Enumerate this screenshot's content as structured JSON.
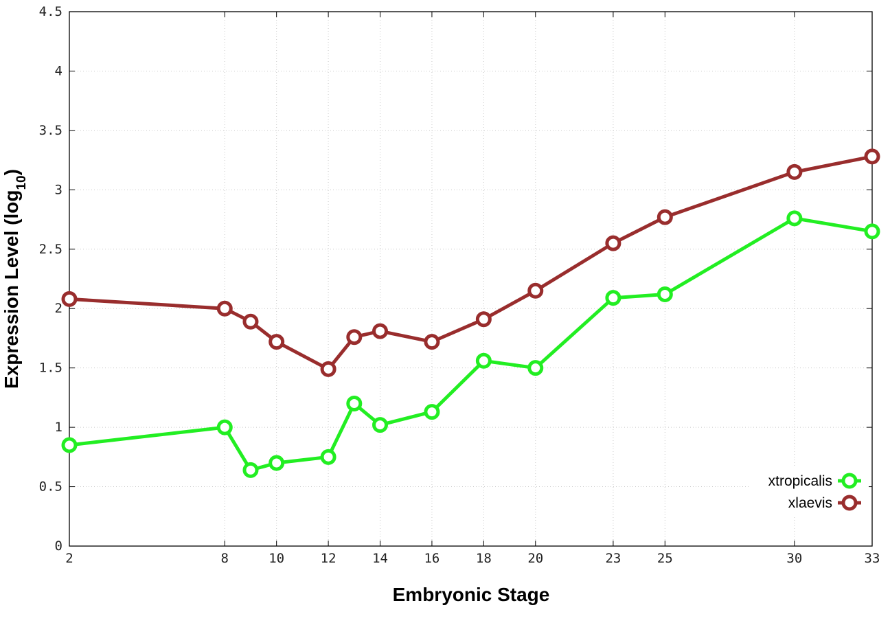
{
  "chart_data": {
    "type": "line",
    "xlabel": "Embryonic Stage",
    "ylabel": "Expression Level (log",
    "ylabel_sub": "10",
    "ylabel_close": ")",
    "x": [
      2,
      8,
      9,
      10,
      12,
      13,
      14,
      16,
      18,
      20,
      23,
      25,
      30,
      33
    ],
    "x_tick_values": [
      2,
      8,
      10,
      12,
      14,
      16,
      18,
      20,
      23,
      25,
      30,
      33
    ],
    "x_tick_labels": [
      "2",
      "8",
      "10",
      "12",
      "14",
      "16",
      "18",
      "20",
      "23",
      "25",
      "30",
      "33"
    ],
    "y_tick_values": [
      0,
      0.5,
      1,
      1.5,
      2,
      2.5,
      3,
      3.5,
      4,
      4.5
    ],
    "y_tick_labels": [
      "0",
      "0.5",
      "1",
      "1.5",
      "2",
      "2.5",
      "3",
      "3.5",
      "4",
      "4.5"
    ],
    "xlim": [
      2,
      33
    ],
    "ylim": [
      0,
      4.5
    ],
    "grid": true,
    "legend_position": "bottom-right",
    "series": [
      {
        "name": "xtropicalis",
        "color": "#22ee22",
        "values": [
          0.85,
          1.0,
          0.64,
          0.7,
          0.75,
          1.2,
          1.02,
          1.13,
          1.56,
          1.5,
          2.09,
          2.12,
          2.76,
          2.65
        ]
      },
      {
        "name": "xlaevis",
        "color": "#992d2d",
        "values": [
          2.08,
          2.0,
          1.89,
          1.72,
          1.49,
          1.76,
          1.81,
          1.72,
          1.91,
          2.15,
          2.55,
          2.77,
          3.15,
          3.28
        ]
      }
    ]
  }
}
